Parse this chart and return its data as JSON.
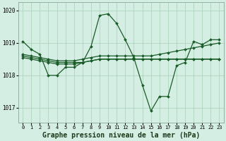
{
  "bg_color": "#d4eee4",
  "grid_color": "#b0d4c0",
  "line_color": "#1a5c28",
  "marker": "D",
  "markersize": 2.0,
  "linewidth": 0.9,
  "xlabel": "Graphe pression niveau de la mer (hPa)",
  "xlabel_fontsize": 7.0,
  "ylim": [
    1016.55,
    1020.25
  ],
  "xlim": [
    -0.5,
    23.5
  ],
  "yticks": [
    1017,
    1018,
    1019,
    1020
  ],
  "xticks": [
    0,
    1,
    2,
    3,
    4,
    5,
    6,
    7,
    8,
    9,
    10,
    11,
    12,
    13,
    14,
    15,
    16,
    17,
    18,
    19,
    20,
    21,
    22,
    23
  ],
  "series": [
    [
      1019.05,
      1018.8,
      1018.65,
      1018.0,
      1018.0,
      1018.25,
      1018.25,
      1018.4,
      1018.9,
      1019.85,
      1019.9,
      1019.6,
      1019.1,
      1018.55,
      1017.7,
      1016.9,
      1017.35,
      1017.35,
      1018.3,
      1018.4,
      1019.05,
      1018.95,
      1019.1,
      1019.1
    ],
    [
      1018.65,
      1018.6,
      1018.55,
      1018.5,
      1018.45,
      1018.45,
      1018.45,
      1018.5,
      1018.55,
      1018.6,
      1018.6,
      1018.6,
      1018.6,
      1018.6,
      1018.6,
      1018.6,
      1018.65,
      1018.7,
      1018.75,
      1018.8,
      1018.85,
      1018.9,
      1018.95,
      1019.0
    ],
    [
      1018.6,
      1018.55,
      1018.5,
      1018.45,
      1018.4,
      1018.4,
      1018.4,
      1018.4,
      1018.45,
      1018.5,
      1018.5,
      1018.5,
      1018.5,
      1018.5,
      1018.5,
      1018.5,
      1018.5,
      1018.5,
      1018.5,
      1018.5,
      1018.5,
      1018.5,
      1018.5,
      1018.5
    ],
    [
      1018.55,
      1018.5,
      1018.45,
      1018.4,
      1018.35,
      1018.35,
      1018.35,
      1018.4,
      1018.45,
      1018.5,
      1018.5,
      1018.5,
      1018.5,
      1018.5,
      1018.5,
      1018.5,
      1018.5,
      1018.5,
      1018.5,
      1018.5,
      1018.5,
      1018.5,
      1018.5,
      1018.5
    ]
  ]
}
